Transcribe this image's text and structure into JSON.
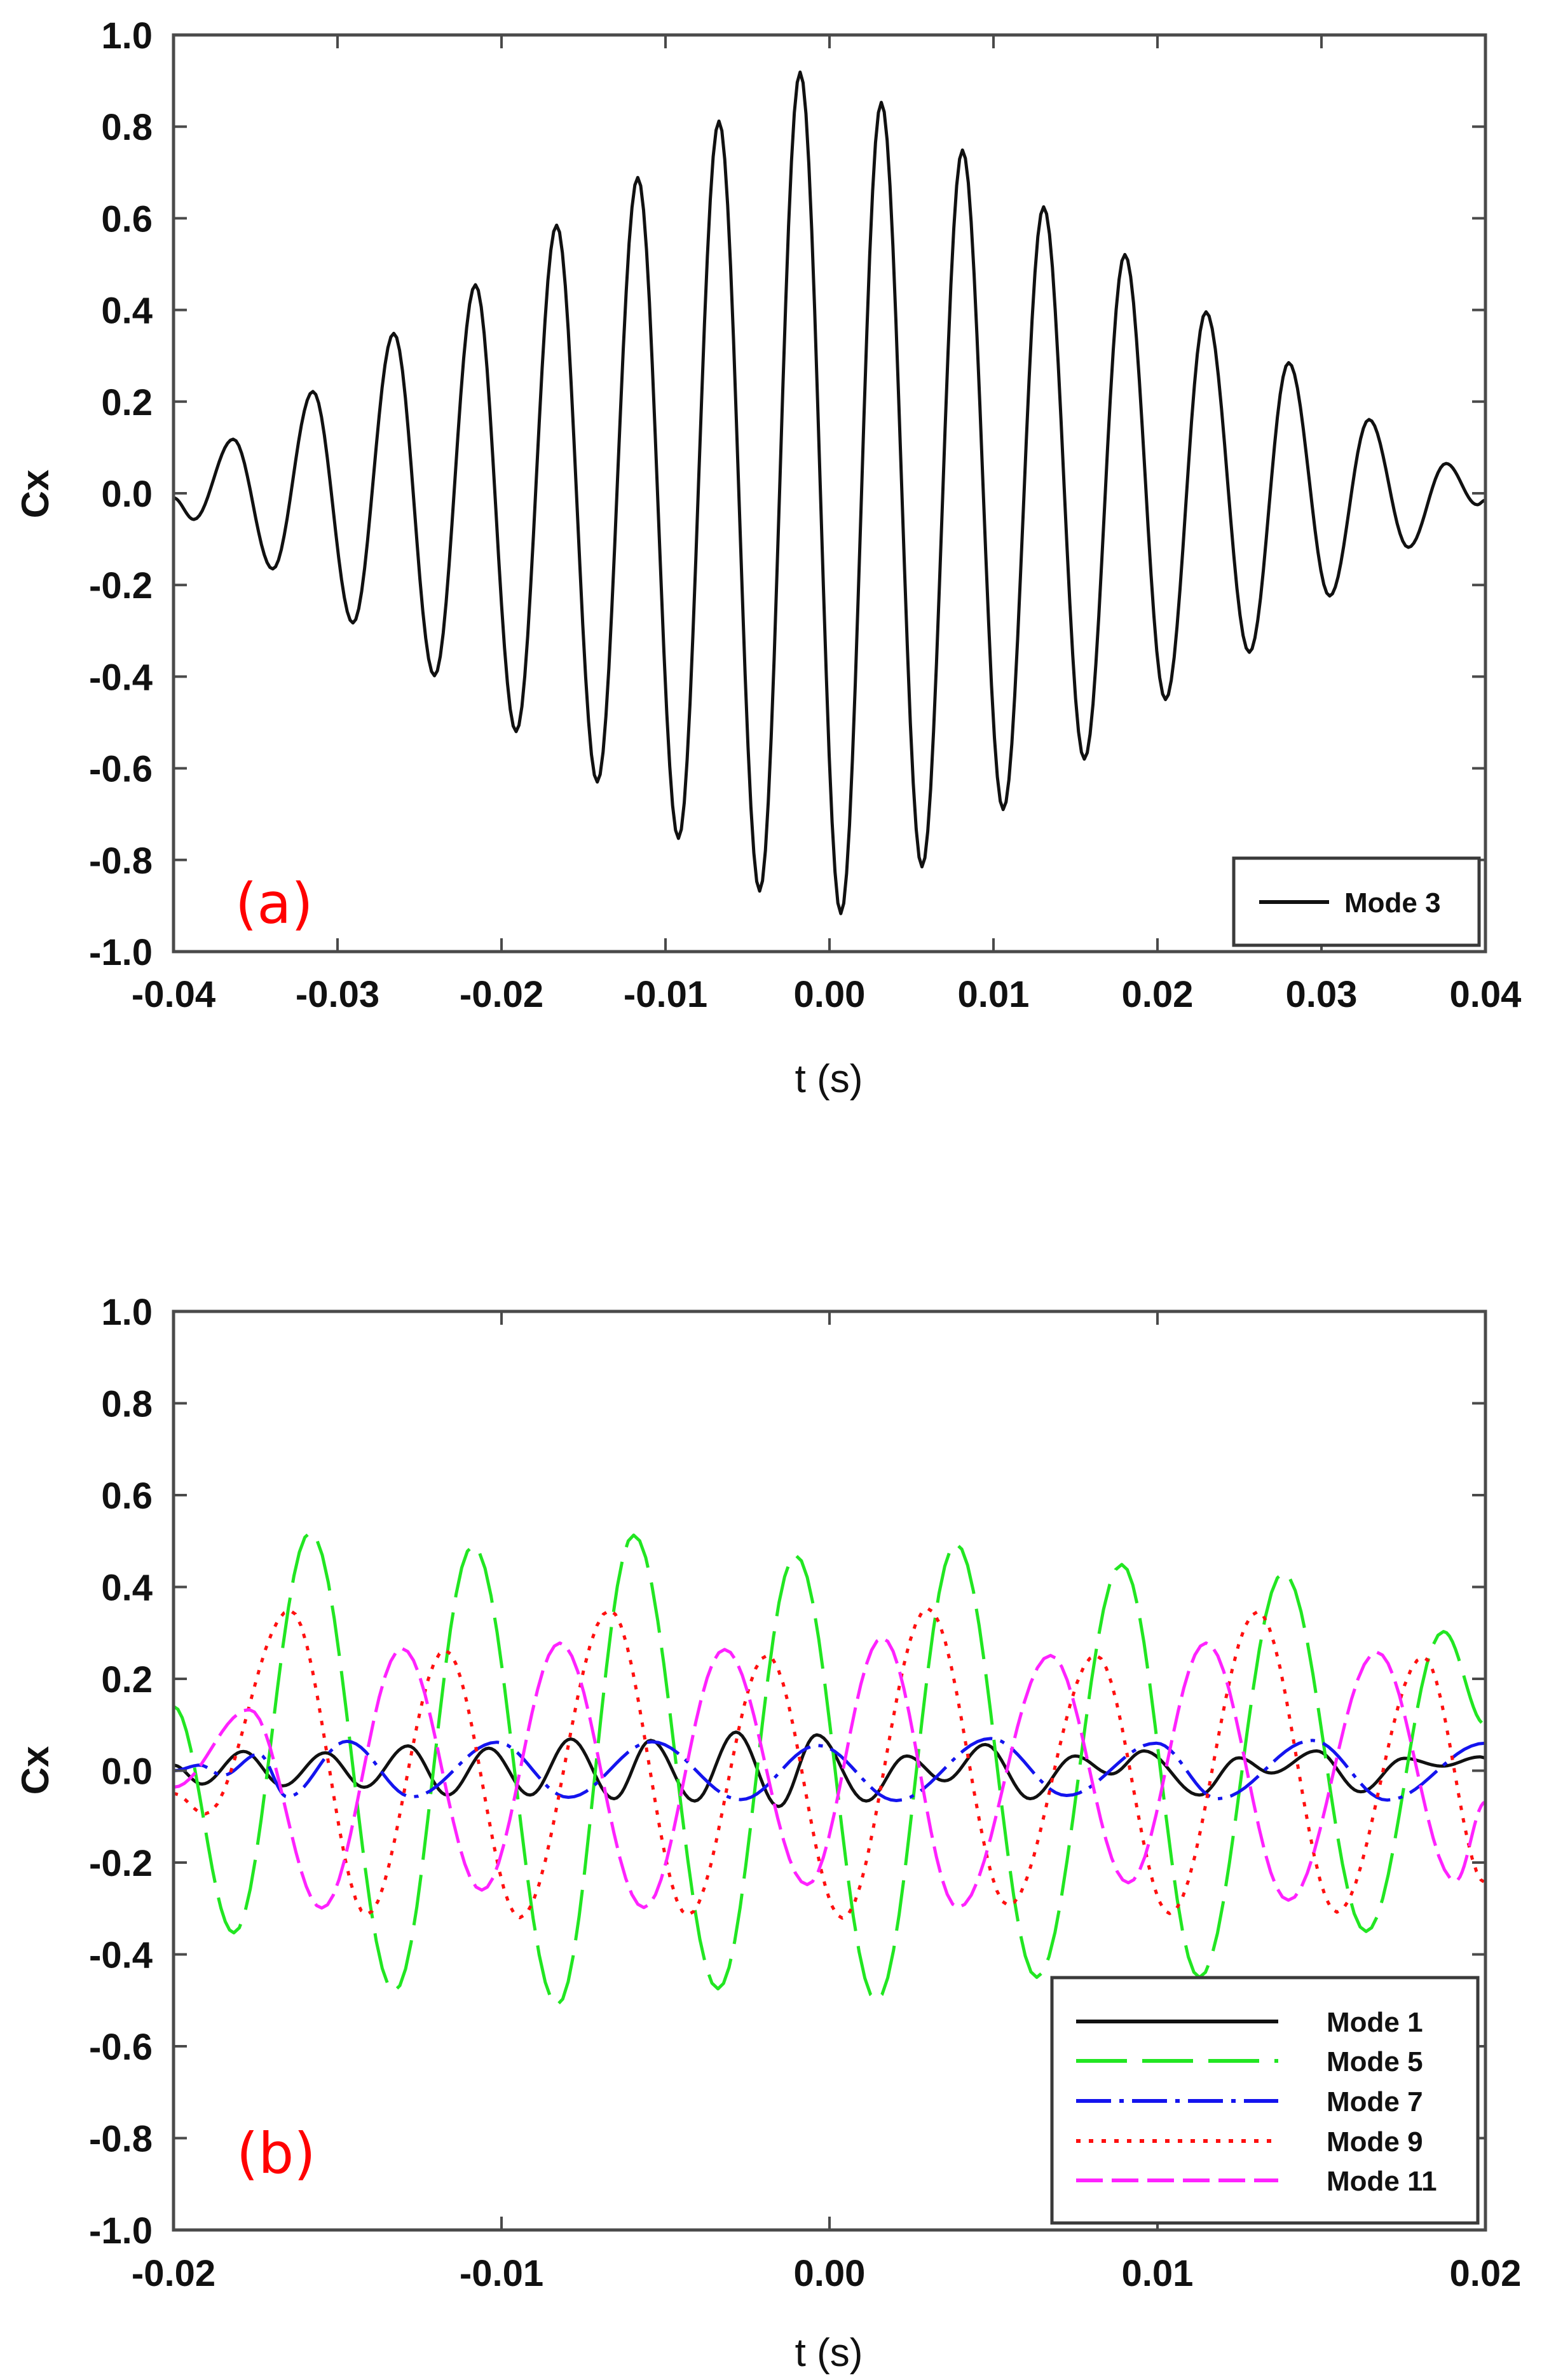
{
  "figure": {
    "panel_a_label": "(a)",
    "panel_b_label": "(b)"
  },
  "chart_data": [
    {
      "id": "a",
      "type": "line",
      "title": "",
      "panel_label": "(a)",
      "xlabel": "t (s)",
      "ylabel": "Cx",
      "xlim": [
        -0.04,
        0.04
      ],
      "ylim": [
        -1.0,
        1.0
      ],
      "grid": false,
      "legend_position": "lower right",
      "x_ticks": [
        -0.04,
        -0.03,
        -0.02,
        -0.01,
        0.0,
        0.01,
        0.02,
        0.03,
        0.04
      ],
      "x_tick_labels": [
        "-0.04",
        "-0.03",
        "-0.02",
        "-0.01",
        "0.00",
        "0.01",
        "0.02",
        "0.03",
        "0.04"
      ],
      "y_ticks": [
        1.0,
        0.8,
        0.6,
        0.4,
        0.2,
        0.0,
        -0.2,
        -0.4,
        -0.6,
        -0.8,
        -1.0
      ],
      "y_tick_labels": [
        "1.0",
        "0.8",
        "0.6",
        "0.4",
        "0.2",
        "0.0",
        "-0.2",
        "-0.4",
        "-0.6",
        "-0.8",
        "-1.0"
      ],
      "series": [
        {
          "name": "Mode 3",
          "color": "#111111",
          "dash": "",
          "extrema": [
            [
              -0.04,
              -0.01
            ],
            [
              -0.03876,
              -0.057
            ],
            [
              -0.03636,
              0.118
            ],
            [
              -0.03395,
              -0.165
            ],
            [
              -0.0315,
              0.222
            ],
            [
              -0.02906,
              -0.283
            ],
            [
              -0.02657,
              0.349
            ],
            [
              -0.02409,
              -0.398
            ],
            [
              -0.02159,
              0.455
            ],
            [
              -0.01911,
              -0.52
            ],
            [
              -0.01664,
              0.585
            ],
            [
              -0.01416,
              -0.63
            ],
            [
              -0.01169,
              0.689
            ],
            [
              -0.00921,
              -0.753
            ],
            [
              -0.00674,
              0.812
            ],
            [
              -0.00426,
              -0.868
            ],
            [
              -0.00179,
              0.919
            ],
            [
              0.00069,
              -0.917
            ],
            [
              0.00316,
              0.853
            ],
            [
              0.00564,
              -0.815
            ],
            [
              0.00811,
              0.749
            ],
            [
              0.01059,
              -0.69
            ],
            [
              0.01306,
              0.625
            ],
            [
              0.01554,
              -0.58
            ],
            [
              0.01801,
              0.521
            ],
            [
              0.02049,
              -0.45
            ],
            [
              0.02296,
              0.396
            ],
            [
              0.0256,
              -0.347
            ],
            [
              0.028,
              0.285
            ],
            [
              0.0305,
              -0.224
            ],
            [
              0.0329,
              0.161
            ],
            [
              0.0353,
              -0.118
            ],
            [
              0.0376,
              0.065
            ],
            [
              0.0395,
              -0.025
            ],
            [
              0.04,
              -0.015
            ]
          ]
        }
      ]
    },
    {
      "id": "b",
      "type": "line",
      "title": "",
      "panel_label": "(b)",
      "xlabel": "t (s)",
      "ylabel": "Cx",
      "xlim": [
        -0.02,
        0.02
      ],
      "ylim": [
        -1.0,
        1.0
      ],
      "grid": false,
      "legend_position": "lower right",
      "x_ticks": [
        -0.02,
        -0.01,
        0.0,
        0.01,
        0.02
      ],
      "x_tick_labels": [
        "-0.02",
        "-0.01",
        "0.00",
        "0.01",
        "0.02"
      ],
      "y_ticks": [
        1.0,
        0.8,
        0.6,
        0.4,
        0.2,
        0.0,
        -0.2,
        -0.4,
        -0.6,
        -0.8,
        -1.0
      ],
      "y_tick_labels": [
        "1.0",
        "0.8",
        "0.6",
        "0.4",
        "0.2",
        "0.0",
        "-0.2",
        "-0.4",
        "-0.6",
        "-0.8",
        "-1.0"
      ],
      "series": [
        {
          "name": "Mode 1",
          "color": "#111111",
          "dash": "",
          "extrema": [
            [
              -0.02,
              0.012
            ],
            [
              -0.01913,
              -0.029
            ],
            [
              -0.01787,
              0.042
            ],
            [
              -0.01667,
              -0.033
            ],
            [
              -0.01537,
              0.039
            ],
            [
              -0.01419,
              -0.036
            ],
            [
              -0.01285,
              0.054
            ],
            [
              -0.01165,
              -0.053
            ],
            [
              -0.01039,
              0.049
            ],
            [
              -0.00913,
              -0.053
            ],
            [
              -0.00789,
              0.069
            ],
            [
              -0.00657,
              -0.061
            ],
            [
              -0.00545,
              0.066
            ],
            [
              -0.00411,
              -0.066
            ],
            [
              -0.00285,
              0.084
            ],
            [
              -0.00155,
              -0.078
            ],
            [
              -0.00039,
              0.078
            ],
            [
              0.00112,
              -0.066
            ],
            [
              0.00235,
              0.032
            ],
            [
              0.00351,
              -0.022
            ],
            [
              0.00475,
              0.057
            ],
            [
              0.00612,
              -0.061
            ],
            [
              0.00749,
              0.032
            ],
            [
              0.00859,
              -0.007
            ],
            [
              0.00959,
              0.043
            ],
            [
              0.01128,
              -0.053
            ],
            [
              0.01248,
              0.028
            ],
            [
              0.01347,
              -0.005
            ],
            [
              0.01485,
              0.043
            ],
            [
              0.0162,
              -0.046
            ],
            [
              0.01752,
              0.027
            ],
            [
              0.01868,
              0.01
            ],
            [
              0.01983,
              0.03
            ],
            [
              0.02,
              0.028
            ]
          ]
        },
        {
          "name": "Mode 5",
          "color": "#22e622",
          "dash": "80 24",
          "extrema": [
            [
              -0.02,
              0.14
            ],
            [
              -0.01816,
              -0.353
            ],
            [
              -0.01583,
              0.519
            ],
            [
              -0.01327,
              -0.48
            ],
            [
              -0.01087,
              0.49
            ],
            [
              -0.0083,
              -0.51
            ],
            [
              -0.00597,
              0.513
            ],
            [
              -0.0034,
              -0.475
            ],
            [
              -0.00103,
              0.469
            ],
            [
              0.00143,
              -0.5
            ],
            [
              0.00386,
              0.494
            ],
            [
              0.00632,
              -0.45
            ],
            [
              0.00891,
              0.449
            ],
            [
              0.01128,
              -0.45
            ],
            [
              0.01384,
              0.431
            ],
            [
              0.01636,
              -0.35
            ],
            [
              0.01872,
              0.303
            ],
            [
              0.02,
              0.1
            ]
          ]
        },
        {
          "name": "Mode 7",
          "color": "#1414ee",
          "dash": "55 13 7 13",
          "extrema": [
            [
              -0.02,
              0.0
            ],
            [
              -0.0192,
              0.012
            ],
            [
              -0.0185,
              -0.01
            ],
            [
              -0.0174,
              0.036
            ],
            [
              -0.01653,
              -0.057
            ],
            [
              -0.01471,
              0.064
            ],
            [
              -0.01273,
              -0.057
            ],
            [
              -0.01014,
              0.062
            ],
            [
              -0.00796,
              -0.058
            ],
            [
              -0.00541,
              0.063
            ],
            [
              -0.00271,
              -0.063
            ],
            [
              -0.00035,
              0.055
            ],
            [
              0.00204,
              -0.065
            ],
            [
              0.00492,
              0.07
            ],
            [
              0.00723,
              -0.054
            ],
            [
              0.00996,
              0.06
            ],
            [
              0.01184,
              -0.061
            ],
            [
              0.01473,
              0.066
            ],
            [
              0.017,
              -0.064
            ],
            [
              0.02,
              0.06
            ]
          ]
        },
        {
          "name": "Mode 9",
          "color": "#ff1010",
          "dash": "7 13",
          "extrema": [
            [
              -0.02,
              -0.05
            ],
            [
              -0.01903,
              -0.094
            ],
            [
              -0.01645,
              0.349
            ],
            [
              -0.01411,
              -0.313
            ],
            [
              -0.01172,
              0.262
            ],
            [
              -0.00944,
              -0.32
            ],
            [
              -0.0067,
              0.349
            ],
            [
              -0.00432,
              -0.314
            ],
            [
              -0.0019,
              0.251
            ],
            [
              0.00039,
              -0.321
            ],
            [
              0.003,
              0.353
            ],
            [
              0.00545,
              -0.293
            ],
            [
              0.00812,
              0.251
            ],
            [
              0.01037,
              -0.311
            ],
            [
              0.01305,
              0.346
            ],
            [
              0.01547,
              -0.308
            ],
            [
              0.0181,
              0.247
            ],
            [
              0.02,
              -0.244
            ]
          ]
        },
        {
          "name": "Mode 11",
          "color": "#ff22ff",
          "dash": "42 14",
          "extrema": [
            [
              -0.02,
              -0.036
            ],
            [
              -0.01769,
              0.133
            ],
            [
              -0.01548,
              -0.299
            ],
            [
              -0.01303,
              0.266
            ],
            [
              -0.0106,
              -0.26
            ],
            [
              -0.00822,
              0.278
            ],
            [
              -0.00566,
              -0.298
            ],
            [
              -0.0032,
              0.264
            ],
            [
              -0.00068,
              -0.248
            ],
            [
              0.00161,
              0.289
            ],
            [
              0.00392,
              -0.298
            ],
            [
              0.00674,
              0.251
            ],
            [
              0.00911,
              -0.244
            ],
            [
              0.01148,
              0.278
            ],
            [
              0.01399,
              -0.282
            ],
            [
              0.01669,
              0.258
            ],
            [
              0.01909,
              -0.24
            ],
            [
              0.02,
              -0.068
            ]
          ]
        }
      ]
    }
  ]
}
